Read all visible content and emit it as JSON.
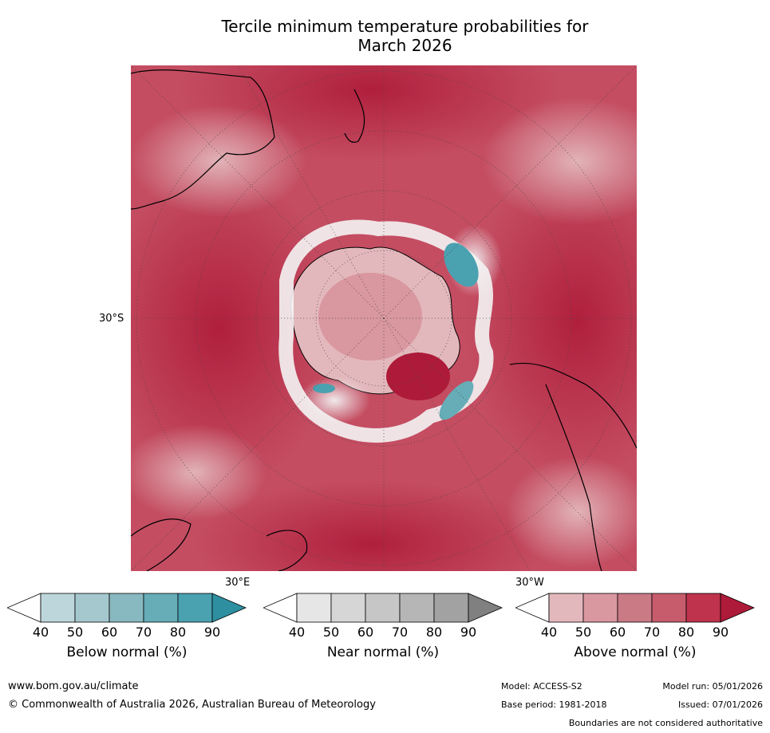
{
  "title_line1": "Tercile minimum temperature probabilities for",
  "title_line2": "March 2026",
  "map": {
    "lat_label": "30°S",
    "lon_labels": [
      "30°E",
      "30°W"
    ]
  },
  "colorbars": [
    {
      "id": "below",
      "label": "Below normal (%)",
      "ticks": [
        "40",
        "50",
        "60",
        "70",
        "80",
        "90"
      ],
      "colors": [
        "#ffffff",
        "#bdd6dc",
        "#a5c8ce",
        "#88b9c0",
        "#66adb8",
        "#4aa1b0",
        "#2e8fa1"
      ]
    },
    {
      "id": "near",
      "label": "Near normal (%)",
      "ticks": [
        "40",
        "50",
        "60",
        "70",
        "80",
        "90"
      ],
      "colors": [
        "#ffffff",
        "#e6e6e6",
        "#d6d6d6",
        "#c6c6c6",
        "#b6b6b6",
        "#a2a2a2",
        "#808080"
      ]
    },
    {
      "id": "above",
      "label": "Above normal (%)",
      "ticks": [
        "40",
        "50",
        "60",
        "70",
        "80",
        "90"
      ],
      "colors": [
        "#ffffff",
        "#e3b8bc",
        "#d9979f",
        "#c97a85",
        "#c65c6c",
        "#bf334d",
        "#ae1a39"
      ]
    }
  ],
  "footer": {
    "website": "www.bom.gov.au/climate",
    "copyright": "© Commonwealth of Australia 2026, Australian Bureau of Meteorology",
    "model": "Model: ACCESS-S2",
    "model_run": "Model run: 05/01/2026",
    "base_period": "Base period: 1981-2018",
    "issued": "Issued: 07/01/2026",
    "disclaimer": "Boundaries are not considered authoritative"
  }
}
